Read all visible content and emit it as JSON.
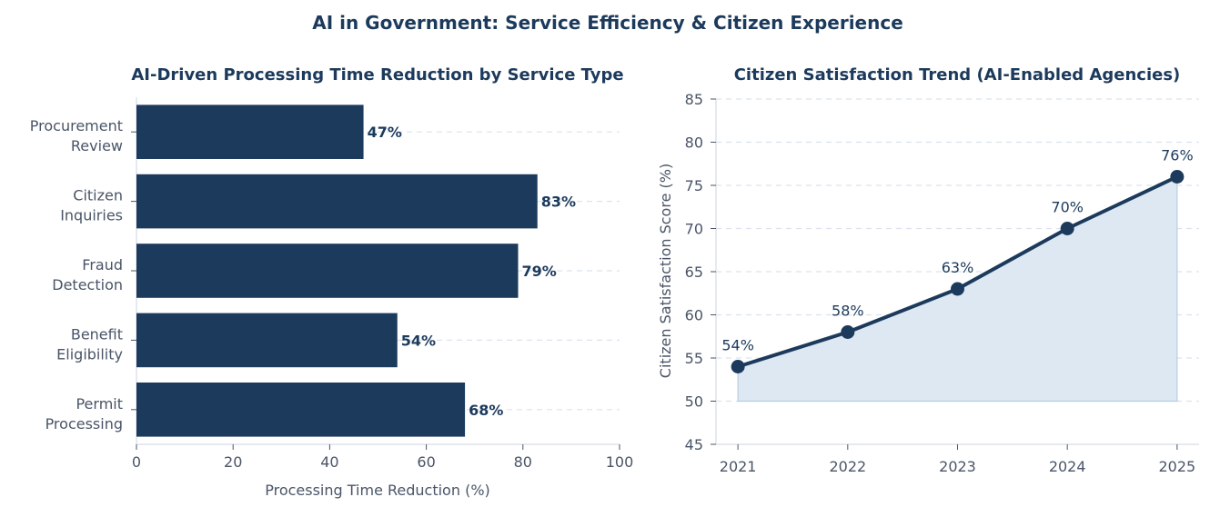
{
  "figure": {
    "suptitle": "AI in Government: Service Efficiency & Citizen Experience"
  },
  "colors": {
    "navy": "#1c3a5c",
    "text": "#4a5568",
    "axis": "#d6dde6",
    "grid": "#dbe3ec",
    "area": "#dde8f3",
    "areaEdge": "#b9cde3"
  },
  "chart_data": [
    {
      "type": "bar",
      "orientation": "horizontal",
      "title": "AI-Driven Processing Time Reduction by Service Type",
      "xlabel": "Processing Time Reduction (%)",
      "ylabel": "",
      "categories": [
        "Procurement Review",
        "Citizen Inquiries",
        "Fraud Detection",
        "Benefit Eligibility",
        "Permit Processing"
      ],
      "category_lines": [
        [
          "Procurement",
          "Review"
        ],
        [
          "Citizen",
          "Inquiries"
        ],
        [
          "Fraud",
          "Detection"
        ],
        [
          "Benefit",
          "Eligibility"
        ],
        [
          "Permit",
          "Processing"
        ]
      ],
      "values": [
        47,
        83,
        79,
        54,
        68
      ],
      "value_labels": [
        "47%",
        "83%",
        "79%",
        "54%",
        "68%"
      ],
      "xlim": [
        0,
        100
      ],
      "xticks": [
        0,
        20,
        40,
        60,
        80,
        100
      ],
      "grid": "x dashed"
    },
    {
      "type": "area",
      "title": "Citizen Satisfaction Trend (AI-Enabled Agencies)",
      "xlabel": "",
      "ylabel": "Citizen Satisfaction Score (%)",
      "x": [
        2021,
        2022,
        2023,
        2024,
        2025
      ],
      "values": [
        54,
        58,
        63,
        70,
        76
      ],
      "value_labels": [
        "54%",
        "58%",
        "63%",
        "70%",
        "76%"
      ],
      "fill_base": 50,
      "ylim": [
        45,
        85
      ],
      "yticks": [
        45,
        50,
        55,
        60,
        65,
        70,
        75,
        80,
        85
      ],
      "grid": "y dashed"
    }
  ]
}
